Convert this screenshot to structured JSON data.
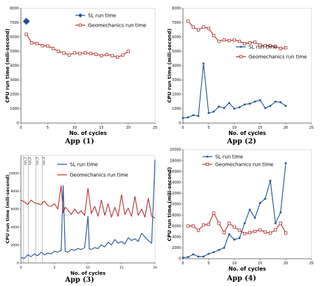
{
  "colors": {
    "sl": "#1f4e96",
    "geo": "#b03030",
    "axis": "#555555",
    "text": "#000000"
  },
  "chart_data": [
    {
      "type": "line",
      "caption": "App (1)",
      "ylabel": "CPU run time (mili-second)",
      "xlabel": "No. of cycles",
      "xlim": [
        0,
        25
      ],
      "ylim": [
        0,
        8000
      ],
      "xticks": [
        "0",
        "5",
        "10",
        "15",
        "20",
        "25"
      ],
      "yticks": [
        "0",
        "1000",
        "2000",
        "3000",
        "4000",
        "5000",
        "6000",
        "7000",
        "8000"
      ],
      "legend_position": "top-right",
      "series": [
        {
          "name": "SL run time",
          "marker": "diamond",
          "x": [
            1
          ],
          "y": [
            7100
          ]
        },
        {
          "name": "Geomechanics run time",
          "marker": "square",
          "x": [
            1,
            2,
            3,
            4,
            5,
            6,
            7,
            8,
            9,
            10,
            11,
            12,
            13,
            14,
            15,
            16,
            17,
            18,
            19,
            20
          ],
          "y": [
            6200,
            5600,
            5550,
            5400,
            5380,
            5200,
            5000,
            4900,
            4750,
            4900,
            4850,
            4900,
            4850,
            4800,
            4700,
            4780,
            4700,
            4600,
            4750,
            5000
          ]
        }
      ]
    },
    {
      "type": "line",
      "caption": "App (2)",
      "ylabel": "CPU run time (mili-second)",
      "xlabel": "No. of cycles",
      "xlim": [
        0,
        25
      ],
      "ylim": [
        0,
        8000
      ],
      "xticks": [
        "0",
        "5",
        "10",
        "15",
        "20",
        "25"
      ],
      "yticks": [
        "0",
        "1000",
        "2000",
        "3000",
        "4000",
        "5000",
        "6000",
        "7000",
        "8000"
      ],
      "legend_position": "middle-right",
      "series": [
        {
          "name": "SL run time",
          "marker": "dot",
          "x": [
            0,
            1,
            2,
            3,
            4,
            5,
            6,
            7,
            8,
            9,
            10,
            11,
            12,
            13,
            14,
            15,
            16,
            17,
            18,
            19,
            20
          ],
          "y": [
            350,
            400,
            550,
            500,
            4150,
            700,
            800,
            1150,
            1050,
            1400,
            1000,
            1100,
            1300,
            1350,
            1500,
            1600,
            1050,
            1200,
            1500,
            1450,
            1200
          ]
        },
        {
          "name": "Geomechanics run time",
          "marker": "square",
          "x": [
            1,
            2,
            3,
            4,
            5,
            6,
            7,
            8,
            9,
            10,
            11,
            12,
            13,
            14,
            15,
            16,
            17,
            18,
            19,
            20
          ],
          "y": [
            7100,
            6700,
            6500,
            6700,
            6600,
            6100,
            5700,
            5800,
            5750,
            5800,
            5700,
            5550,
            5600,
            5650,
            5450,
            5400,
            5400,
            5350,
            5200,
            5250
          ]
        }
      ]
    },
    {
      "type": "line",
      "caption": "App (3)",
      "ylabel": "CPU run time (mili-second)",
      "xlabel": "No. of cycles",
      "xlim": [
        0,
        20
      ],
      "ylim": [
        0,
        12000
      ],
      "xticks": [
        "0",
        "5",
        "10",
        "15",
        "20"
      ],
      "yticks": [
        "0",
        "2000",
        "4000",
        "6000",
        "8000",
        "10000"
      ],
      "vertical_markers": [
        {
          "x": 0.4,
          "label": "cyc_1"
        },
        {
          "x": 1.1,
          "label": "cyc_2"
        },
        {
          "x": 2.2,
          "label": "cyc_3"
        },
        {
          "x": 3.2,
          "label": "cyc_4"
        }
      ],
      "legend_position": "top-center",
      "series": [
        {
          "name": "SL run time",
          "x": [
            0,
            0.5,
            1,
            1.5,
            2,
            2.5,
            3,
            3.5,
            4,
            4.5,
            5,
            5.5,
            6,
            6.3,
            6.6,
            7,
            7.5,
            8,
            8.5,
            9,
            9.5,
            10,
            10.2,
            10.5,
            11,
            11.5,
            12,
            12.5,
            13,
            13.5,
            14,
            14.5,
            15,
            15.5,
            16,
            16.5,
            17,
            17.5,
            18,
            18.5,
            19,
            19.5,
            20
          ],
          "y": [
            600,
            500,
            900,
            700,
            1000,
            800,
            1200,
            900,
            1100,
            1000,
            1300,
            1200,
            1400,
            8600,
            1300,
            1200,
            1500,
            1400,
            1600,
            1500,
            1700,
            5200,
            1600,
            1500,
            1700,
            1600,
            2000,
            1800,
            2300,
            2000,
            2600,
            2200,
            2400,
            2100,
            2800,
            2500,
            2700,
            2400,
            3300,
            2900,
            2500,
            2200,
            11500
          ]
        },
        {
          "name": "Geomechanics run time",
          "x": [
            0,
            0.5,
            1,
            1.5,
            2,
            2.5,
            3,
            3.5,
            4,
            4.5,
            5,
            5.5,
            6,
            6.3,
            6.6,
            7,
            7.5,
            8,
            8.5,
            9,
            9.5,
            10,
            10.5,
            11,
            11.5,
            12,
            12.5,
            13,
            13.5,
            14,
            14.5,
            15,
            15.5,
            16,
            16.5,
            17,
            17.5,
            18,
            18.5,
            19,
            19.5,
            20
          ],
          "y": [
            7000,
            6800,
            6500,
            7000,
            6700,
            6600,
            6500,
            6900,
            6400,
            6300,
            6600,
            6000,
            8600,
            5600,
            6200,
            5900,
            5400,
            6000,
            5500,
            5800,
            5300,
            8300,
            5500,
            6300,
            5200,
            7000,
            5300,
            6600,
            5100,
            6200,
            5200,
            7600,
            5400,
            6100,
            5200,
            7400,
            5300,
            6000,
            5100,
            7200,
            5200,
            5000
          ]
        }
      ]
    },
    {
      "type": "line",
      "caption": "App (4)",
      "ylabel": "CPU run time (mili-second)",
      "xlabel": "No. of cycles",
      "xlim": [
        0,
        25
      ],
      "ylim": [
        0,
        20000
      ],
      "xticks": [
        "0",
        "5",
        "10",
        "15",
        "20",
        "25"
      ],
      "yticks": [
        "0",
        "2000",
        "4000",
        "6000",
        "8000",
        "10000",
        "12000",
        "14000",
        "16000",
        "18000",
        "20000"
      ],
      "legend_position": "top-left",
      "series": [
        {
          "name": "SL run time",
          "marker": "dot",
          "x": [
            0,
            1,
            2,
            3,
            4,
            5,
            6,
            7,
            8,
            9,
            10,
            11,
            12,
            13,
            14,
            15,
            16,
            17,
            18,
            19,
            20
          ],
          "y": [
            200,
            300,
            800,
            400,
            400,
            900,
            1200,
            1600,
            2000,
            4500,
            3500,
            3800,
            6500,
            9000,
            7500,
            10200,
            11000,
            14300,
            6500,
            8500,
            17500
          ]
        },
        {
          "name": "Geomechanics run time",
          "marker": "square",
          "x": [
            1,
            2,
            3,
            4,
            5,
            6,
            7,
            8,
            9,
            10,
            11,
            12,
            13,
            14,
            15,
            16,
            17,
            18,
            19,
            20
          ],
          "y": [
            6000,
            6000,
            5200,
            6200,
            6300,
            8400,
            6500,
            4800,
            6500,
            5800,
            5200,
            4600,
            4800,
            5000,
            5300,
            4900,
            4700,
            5300,
            6500,
            4700
          ]
        }
      ]
    }
  ]
}
